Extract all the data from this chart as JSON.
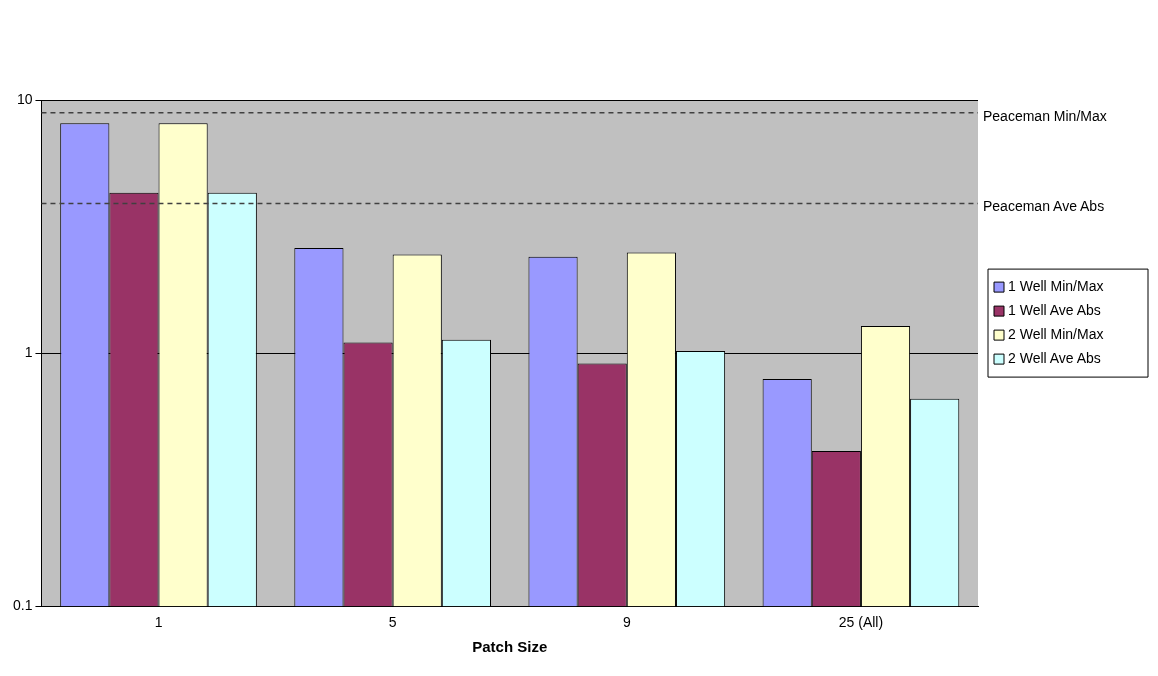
{
  "chart_data": {
    "type": "bar",
    "xlabel": "Patch Size",
    "categories": [
      "1",
      "5",
      "9",
      "25 (All)"
    ],
    "series": [
      {
        "name": "1 Well Min/Max",
        "color": "#9999ff",
        "values": [
          8.1,
          2.6,
          2.4,
          0.79
        ]
      },
      {
        "name": "1 Well Ave Abs",
        "color": "#993366",
        "values": [
          4.3,
          1.1,
          0.91,
          0.41
        ]
      },
      {
        "name": "2 Well Min/Max",
        "color": "#ffffcc",
        "values": [
          8.1,
          2.45,
          2.5,
          1.28
        ]
      },
      {
        "name": "2 Well Ave Abs",
        "color": "#ccffff",
        "values": [
          4.3,
          1.13,
          1.02,
          0.66
        ]
      }
    ],
    "log": "y",
    "ylim": [
      0.1,
      10
    ],
    "yticks": [
      0.1,
      1,
      10
    ],
    "grid": "y",
    "legend": "right",
    "ref_lines": [
      {
        "axis": "y",
        "value": 8.9,
        "label": "Peaceman Min/Max",
        "line_style": "dashed",
        "color": "#404040"
      },
      {
        "axis": "y",
        "value": 3.9,
        "label": "Peaceman Ave Abs",
        "line_style": "dashed",
        "color": "#404040"
      }
    ]
  }
}
